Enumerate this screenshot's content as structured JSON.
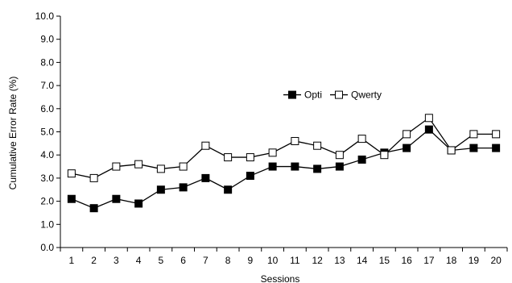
{
  "chart_data": {
    "type": "line",
    "title": "",
    "xlabel": "Sessions",
    "ylabel": "Cumulative Error Rate (%)",
    "x": [
      1,
      2,
      3,
      4,
      5,
      6,
      7,
      8,
      9,
      10,
      11,
      12,
      13,
      14,
      15,
      16,
      17,
      18,
      19,
      20
    ],
    "x_tick_labels": [
      "1",
      "2",
      "3",
      "4",
      "5",
      "6",
      "7",
      "8",
      "9",
      "10",
      "11",
      "12",
      "13",
      "14",
      "15",
      "16",
      "17",
      "18",
      "19",
      "20"
    ],
    "y_ticks": [
      0.0,
      1.0,
      2.0,
      3.0,
      4.0,
      5.0,
      6.0,
      7.0,
      8.0,
      9.0,
      10.0
    ],
    "y_tick_labels": [
      "0.0",
      "1.0",
      "2.0",
      "3.0",
      "4.0",
      "5.0",
      "6.0",
      "7.0",
      "8.0",
      "9.0",
      "10.0"
    ],
    "ylim": [
      0,
      10
    ],
    "grid": false,
    "legend_position": "upper-middle-right",
    "series": [
      {
        "name": "Opti",
        "marker": "filled-square",
        "color": "#000000",
        "values": [
          2.1,
          1.7,
          2.1,
          1.9,
          2.5,
          2.6,
          3.0,
          2.5,
          3.1,
          3.5,
          3.5,
          3.4,
          3.5,
          3.8,
          4.1,
          4.3,
          5.1,
          4.2,
          4.3,
          4.3
        ]
      },
      {
        "name": "Qwerty",
        "marker": "open-square",
        "color": "#000000",
        "values": [
          3.2,
          3.0,
          3.5,
          3.6,
          3.4,
          3.5,
          4.4,
          3.9,
          3.9,
          4.1,
          4.6,
          4.4,
          4.0,
          4.7,
          4.0,
          4.9,
          5.6,
          4.2,
          4.9,
          4.9
        ]
      }
    ]
  }
}
